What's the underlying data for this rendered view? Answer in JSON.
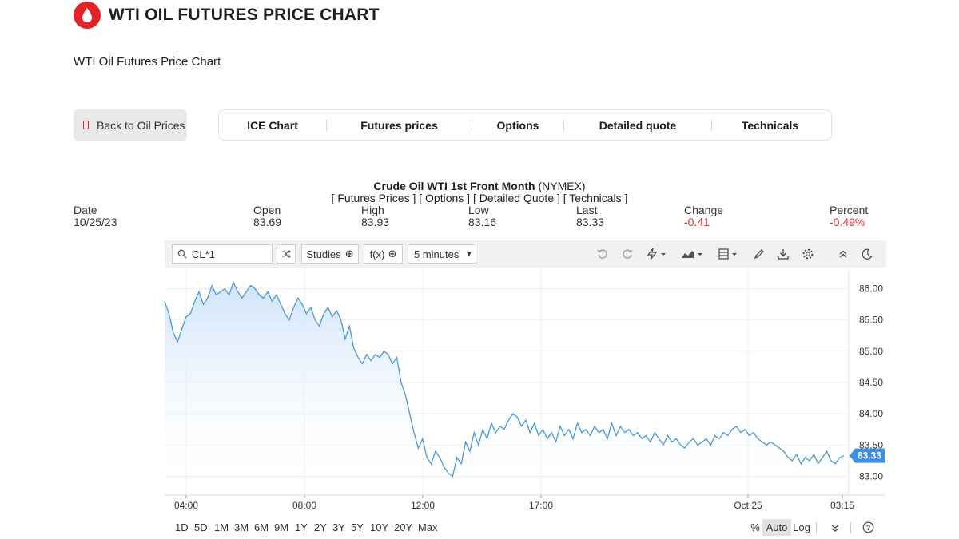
{
  "header": {
    "title": "WTI OIL FUTURES PRICE CHART",
    "subtitle": "WTI Oil Futures Price Chart",
    "logo_icon": "oil-drop-icon",
    "brand_color": "#e1242a"
  },
  "back_button": {
    "label": "Back to Oil Prices",
    "icon": "document-icon"
  },
  "tabs": [
    "ICE Chart",
    "Futures prices",
    "Options",
    "Detailed quote",
    "Technicals"
  ],
  "chart_header": {
    "title": "Crude Oil WTI 1st Front Month",
    "exchange": "(NYMEX)",
    "links": "[ Futures Prices ] [ Options ] [ Detailed Quote ] [ Technicals ]"
  },
  "quote": {
    "date_label": "Date",
    "date": "10/25/23",
    "open_label": "Open",
    "open": "83.69",
    "high_label": "High",
    "high": "83.93",
    "low_label": "Low",
    "low": "83.16",
    "last_label": "Last",
    "last": "83.33",
    "change_label": "Change",
    "change": "-0.41",
    "percent_label": "Percent",
    "percent": "-0.49%"
  },
  "toolbar": {
    "symbol": "CL*1",
    "studies_label": "Studies",
    "fx_label": "f(x)",
    "interval": "5 minutes",
    "icons": [
      "search-icon",
      "compare-icon",
      "undo-icon",
      "redo-icon",
      "lightning-icon",
      "area-chart-icon",
      "layout-icon",
      "pencil-icon",
      "download-icon",
      "gear-icon",
      "collapse-icon",
      "moon-icon"
    ]
  },
  "bottom_bar": {
    "ranges": [
      "1D",
      "5D",
      "1M",
      "3M",
      "6M",
      "9M",
      "1Y",
      "2Y",
      "3Y",
      "5Y",
      "10Y",
      "20Y",
      "Max"
    ],
    "percent_label": "%",
    "auto_label": "Auto",
    "log_label": "Log"
  },
  "chart_data": {
    "type": "area",
    "ylim": [
      82.7,
      86.3
    ],
    "yticks": [
      "86.00",
      "85.50",
      "85.00",
      "84.50",
      "84.00",
      "83.50",
      "83.00"
    ],
    "xticks": [
      "04:00",
      "08:00",
      "12:00",
      "17:00",
      "Oct 25",
      "03:15"
    ],
    "last_price_label": "83.33",
    "line_color": "#4a98d8",
    "fill_color": "#d6e8fb",
    "series": [
      {
        "values": [
          85.8,
          85.6,
          85.3,
          85.15,
          85.35,
          85.55,
          85.6,
          85.8,
          85.95,
          85.75,
          85.85,
          86.05,
          85.9,
          85.95,
          86.0,
          85.9,
          86.1,
          85.95,
          85.85,
          85.95,
          86.05,
          86.0,
          85.9,
          85.85,
          85.95,
          85.8,
          85.9,
          85.75,
          85.6,
          85.5,
          85.7,
          85.85,
          85.75,
          85.6,
          85.7,
          85.5,
          85.4,
          85.6,
          85.7,
          85.55,
          85.65,
          85.5,
          85.2,
          85.4,
          85.05,
          84.9,
          84.8,
          84.95,
          84.85,
          84.95,
          84.9,
          85.0,
          84.95,
          84.8,
          84.9,
          84.5,
          84.3,
          84.0,
          83.7,
          83.45,
          83.6,
          83.3,
          83.2,
          83.4,
          83.3,
          83.15,
          83.05,
          83.0,
          83.3,
          83.2,
          83.55,
          83.4,
          83.7,
          83.5,
          83.75,
          83.6,
          83.85,
          83.7,
          83.8,
          83.75,
          83.9,
          84.0,
          83.95,
          83.8,
          83.9,
          83.7,
          83.85,
          83.65,
          83.75,
          83.6,
          83.7,
          83.55,
          83.8,
          83.65,
          83.75,
          83.6,
          83.85,
          83.7,
          83.75,
          83.65,
          83.8,
          83.7,
          83.75,
          83.6,
          83.85,
          83.65,
          83.8,
          83.7,
          83.75,
          83.65,
          83.7,
          83.6,
          83.65,
          83.55,
          83.7,
          83.6,
          83.5,
          83.65,
          83.55,
          83.6,
          83.5,
          83.45,
          83.55,
          83.6,
          83.5,
          83.55,
          83.6,
          83.5,
          83.65,
          83.6,
          83.7,
          83.65,
          83.75,
          83.8,
          83.7,
          83.75,
          83.65,
          83.7,
          83.6,
          83.55,
          83.5,
          83.55,
          83.5,
          83.45,
          83.4,
          83.3,
          83.25,
          83.35,
          83.2,
          83.3,
          83.25,
          83.35,
          83.2,
          83.3,
          83.4,
          83.25,
          83.2,
          83.3,
          83.33
        ]
      }
    ]
  }
}
